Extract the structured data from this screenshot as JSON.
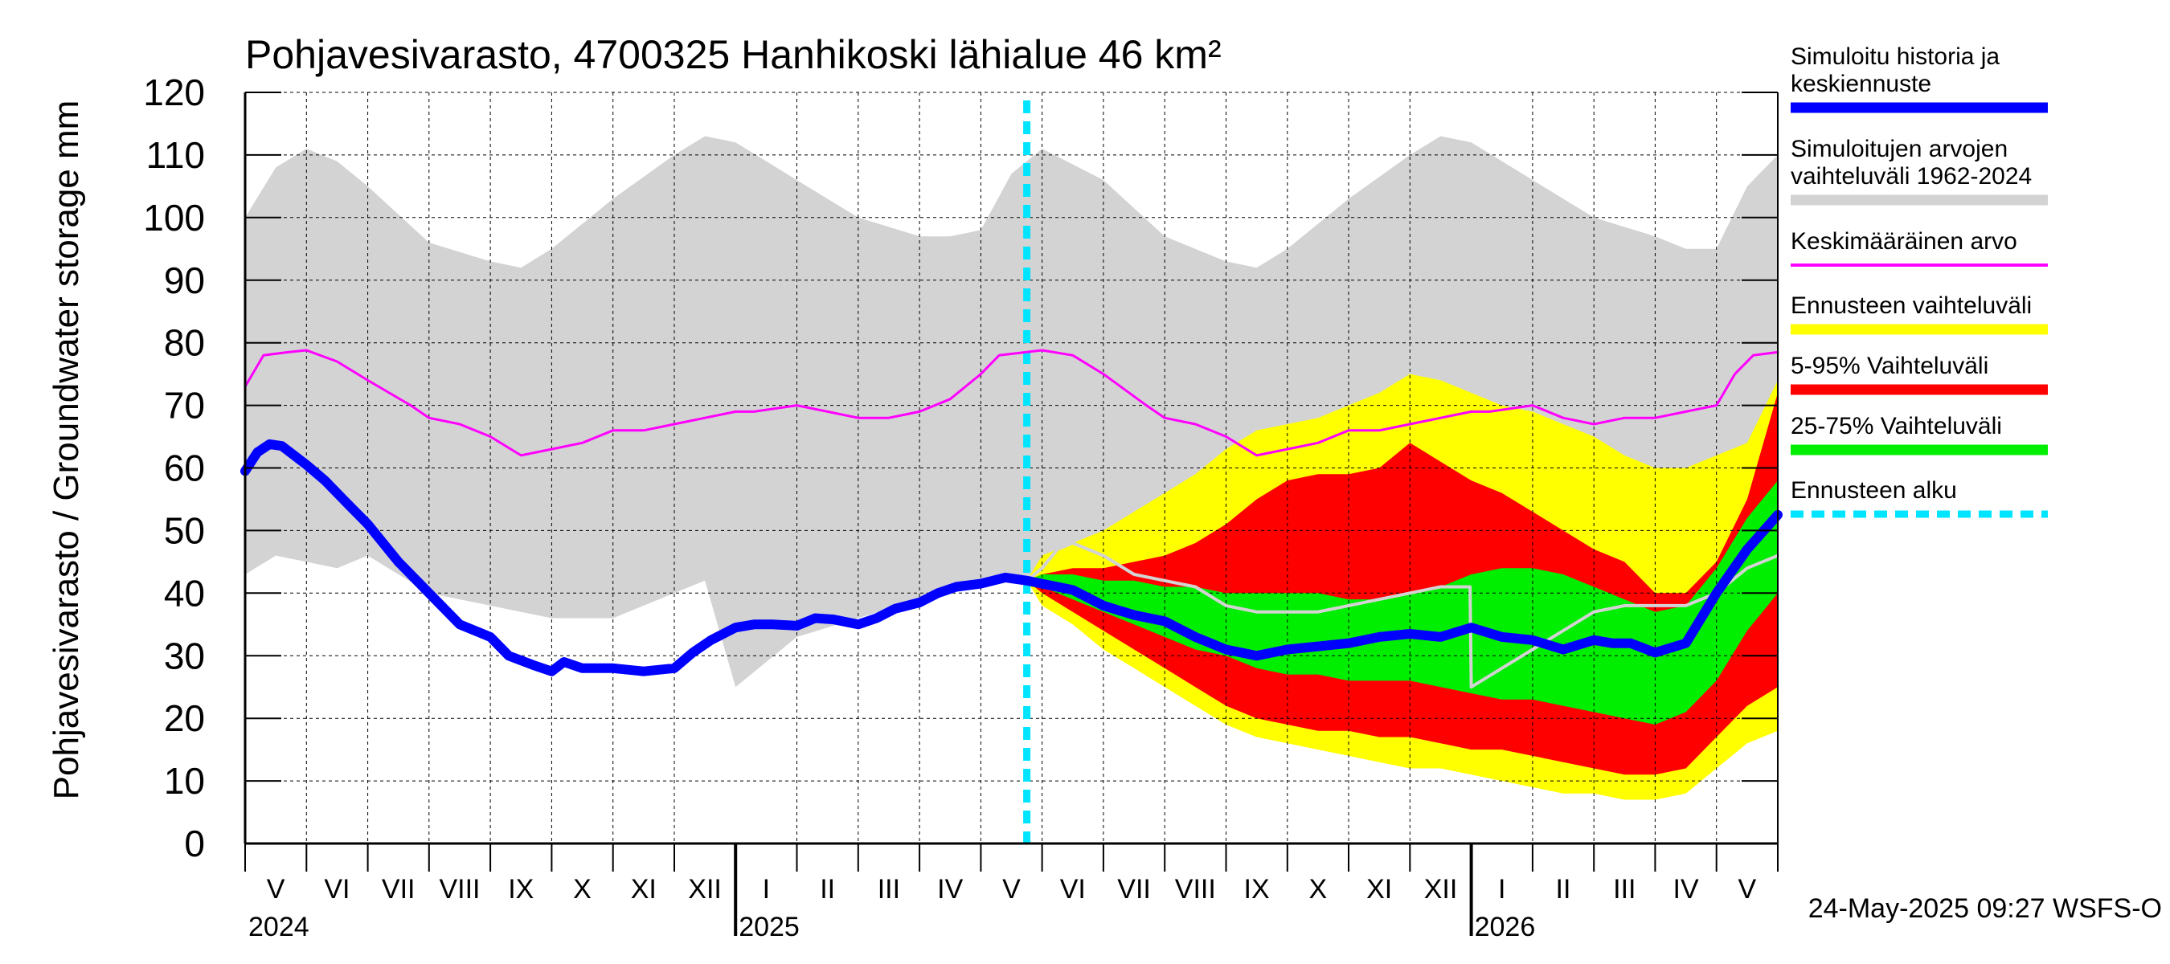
{
  "chart_data": {
    "type": "area",
    "title": "Pohjavesivarasto, 4700325 Hanhikoski lähialue 46 km²",
    "ylabel": "Pohjavesivarasto / Groundwater storage   mm",
    "ylim": [
      0,
      120
    ],
    "yticks": [
      0,
      10,
      20,
      30,
      40,
      50,
      60,
      70,
      80,
      90,
      100,
      110,
      120
    ],
    "grid": true,
    "x_range_months": [
      0,
      25
    ],
    "x_unit": "months since 2024-05-01",
    "months": [
      {
        "label": "V",
        "start": 0
      },
      {
        "label": "VI",
        "start": 1
      },
      {
        "label": "VII",
        "start": 2
      },
      {
        "label": "VIII",
        "start": 3
      },
      {
        "label": "IX",
        "start": 4
      },
      {
        "label": "X",
        "start": 5
      },
      {
        "label": "XI",
        "start": 6
      },
      {
        "label": "XII",
        "start": 7
      },
      {
        "label": "I",
        "start": 8
      },
      {
        "label": "II",
        "start": 9
      },
      {
        "label": "III",
        "start": 10
      },
      {
        "label": "IV",
        "start": 11
      },
      {
        "label": "V",
        "start": 12
      },
      {
        "label": "VI",
        "start": 13
      },
      {
        "label": "VII",
        "start": 14
      },
      {
        "label": "VIII",
        "start": 15
      },
      {
        "label": "IX",
        "start": 16
      },
      {
        "label": "X",
        "start": 17
      },
      {
        "label": "XI",
        "start": 18
      },
      {
        "label": "XII",
        "start": 19
      },
      {
        "label": "I",
        "start": 20
      },
      {
        "label": "II",
        "start": 21
      },
      {
        "label": "III",
        "start": 22
      },
      {
        "label": "IV",
        "start": 23
      },
      {
        "label": "V",
        "start": 24
      }
    ],
    "year_boundaries": [
      8,
      20
    ],
    "years": [
      {
        "label": "2024",
        "start": 0
      },
      {
        "label": "2025",
        "start": 8
      },
      {
        "label": "2026",
        "start": 20
      }
    ],
    "forecast_start": 12.75,
    "timestamp": "24-May-2025 09:27 WSFS-O",
    "legend": [
      {
        "label": "Simuloitu historia ja keskiennuste",
        "color": "#0000ff",
        "style": "thick"
      },
      {
        "label": "Simuloitujen arvojen vaihteluväli 1962-2024",
        "color": "#d3d3d3",
        "style": "thick"
      },
      {
        "label": "Keskimääräinen arvo",
        "color": "#ff00ff",
        "style": "thin"
      },
      {
        "label": "Ennusteen vaihteluväli",
        "color": "#ffff00",
        "style": "thick"
      },
      {
        "label": "5-95% Vaihteluväli",
        "color": "#ff0000",
        "style": "thick"
      },
      {
        "label": "25-75% Vaihteluväli",
        "color": "#00ee00",
        "style": "thick"
      },
      {
        "label": "Ennusteen alku",
        "color": "#00e5ff",
        "style": "dashed"
      }
    ],
    "series": [
      {
        "name": "Simuloitujen arvojen vaihteluväli 1962-2024",
        "kind": "band",
        "color": "#d3d3d3",
        "x": [
          0,
          0.5,
          1,
          1.5,
          2,
          3,
          4,
          4.5,
          5,
          6,
          7,
          7.5,
          8,
          9,
          10,
          11,
          11.5,
          12,
          12.5,
          13,
          14,
          15,
          16,
          16.5,
          17,
          18,
          19,
          19.5,
          20,
          21,
          22,
          23,
          23.5,
          24,
          24.5,
          25
        ],
        "upper": [
          100,
          108,
          111,
          109,
          105,
          96,
          93,
          92,
          95,
          103,
          110,
          113,
          112,
          106,
          100,
          97,
          97,
          98,
          107,
          111,
          106,
          97,
          93,
          92,
          95,
          103,
          110,
          113,
          112,
          106,
          100,
          97,
          95,
          95,
          105,
          110
        ],
        "lower": [
          43,
          46,
          45,
          44,
          46,
          40,
          38,
          37,
          36,
          36,
          40,
          42,
          25,
          33,
          36,
          39,
          40,
          41,
          42,
          42,
          40,
          38,
          37,
          36,
          36,
          36,
          40,
          42,
          25,
          33,
          36,
          39,
          40,
          41,
          42,
          42
        ]
      },
      {
        "name": "Keskimääräinen arvo",
        "kind": "line",
        "color": "#ff00ff",
        "x": [
          0,
          0.3,
          0.7,
          1,
          1.5,
          2,
          2.7,
          3,
          3.5,
          4,
          4.5,
          5,
          5.5,
          6,
          6.5,
          7,
          7.5,
          8,
          8.3,
          9,
          9.5,
          10,
          10.5,
          11,
          11.5,
          12,
          12.3,
          13,
          13.5,
          14,
          14.7,
          15,
          15.5,
          16,
          16.5,
          17,
          17.5,
          18,
          18.5,
          19,
          19.5,
          20,
          20.3,
          21,
          21.5,
          22,
          22.5,
          23,
          23.5,
          24,
          24.3,
          24.6,
          25
        ],
        "y": [
          73,
          78,
          78.5,
          78.8,
          77,
          74,
          70,
          68,
          67,
          65,
          62,
          63,
          64,
          66,
          66,
          67,
          68,
          69,
          69,
          70,
          69,
          68,
          68,
          69,
          71,
          75,
          78,
          78.8,
          78,
          75,
          70,
          68,
          67,
          65,
          62,
          63,
          64,
          66,
          66,
          67,
          68,
          69,
          69,
          70,
          68,
          67,
          68,
          68,
          69,
          70,
          75,
          78,
          78.5
        ]
      },
      {
        "name": "Ennusteen vaihteluväli",
        "kind": "band",
        "color": "#ffff00",
        "x": [
          12.75,
          13,
          13.5,
          14,
          14.5,
          15,
          15.5,
          16,
          16.5,
          17,
          17.5,
          18,
          18.5,
          19,
          19.5,
          20,
          20.5,
          21,
          21.5,
          22,
          22.5,
          23,
          23.5,
          24,
          24.5,
          25
        ],
        "upper": [
          42,
          46,
          48,
          50,
          53,
          56,
          59,
          63,
          66,
          67,
          68,
          70,
          72,
          75,
          74,
          72,
          70,
          69,
          67,
          65,
          62,
          60,
          60,
          62,
          64,
          74
        ],
        "lower": [
          42,
          38,
          35,
          31,
          28,
          25,
          22,
          19,
          17,
          16,
          15,
          14,
          13,
          12,
          12,
          11,
          10,
          9,
          8,
          8,
          7,
          7,
          8,
          12,
          16,
          18
        ]
      },
      {
        "name": "5-95% Vaihteluväli",
        "kind": "band",
        "color": "#ff0000",
        "x": [
          12.75,
          13,
          13.5,
          14,
          14.5,
          15,
          15.5,
          16,
          16.5,
          17,
          17.5,
          18,
          18.5,
          19,
          19.5,
          20,
          20.5,
          21,
          21.5,
          22,
          22.5,
          23,
          23.5,
          24,
          24.5,
          25
        ],
        "upper": [
          42,
          43,
          44,
          44,
          45,
          46,
          48,
          51,
          55,
          58,
          59,
          59,
          60,
          64,
          61,
          58,
          56,
          53,
          50,
          47,
          45,
          40,
          40,
          45,
          55,
          72
        ],
        "lower": [
          42,
          40,
          37,
          34,
          31,
          28,
          25,
          22,
          20,
          19,
          18,
          18,
          17,
          17,
          16,
          15,
          15,
          14,
          13,
          12,
          11,
          11,
          12,
          17,
          22,
          25
        ]
      },
      {
        "name": "25-75% Vaihteluväli",
        "kind": "band",
        "color": "#00ee00",
        "x": [
          12.75,
          13,
          13.5,
          14,
          14.5,
          15,
          15.5,
          16,
          16.5,
          17,
          17.5,
          18,
          18.5,
          19,
          19.5,
          20,
          20.5,
          21,
          21.5,
          22,
          22.5,
          23,
          23.5,
          24,
          24.5,
          25
        ],
        "upper": [
          42,
          43,
          43,
          42,
          42,
          41,
          41,
          40,
          40,
          40,
          40,
          39,
          39,
          40,
          41,
          43,
          44,
          44,
          43,
          41,
          39,
          37,
          38,
          44,
          52,
          58
        ],
        "lower": [
          42,
          41,
          39,
          37,
          35,
          33,
          31,
          30,
          28,
          27,
          27,
          26,
          26,
          26,
          25,
          24,
          23,
          23,
          22,
          21,
          20,
          19,
          21,
          26,
          34,
          40
        ]
      },
      {
        "name": "Mediaani",
        "kind": "line",
        "color": "#d3d3d3",
        "x": [
          12.75,
          13,
          13.25,
          13.5,
          14,
          14.5,
          15,
          15.5,
          16,
          16.5,
          17,
          17.5,
          18,
          18.5,
          19,
          19.5,
          19.98,
          20,
          20.5,
          21,
          21.5,
          22,
          22.5,
          23,
          23.5,
          24,
          24.5,
          25
        ],
        "y": [
          42,
          44,
          47,
          48,
          46,
          43,
          42,
          41,
          38,
          37,
          37,
          37,
          38,
          39,
          40,
          41,
          41,
          25,
          28,
          31,
          34,
          37,
          38,
          38,
          38,
          40,
          44,
          46
        ]
      },
      {
        "name": "Simuloitu historia ja keskiennuste",
        "kind": "line",
        "color": "#0000ff",
        "x": [
          0,
          0.2,
          0.4,
          0.6,
          0.8,
          1,
          1.3,
          1.6,
          2,
          2.5,
          3,
          3.5,
          4,
          4.3,
          4.7,
          5,
          5.2,
          5.5,
          5.8,
          6,
          6.5,
          7,
          7.3,
          7.6,
          8,
          8.3,
          8.6,
          9,
          9.3,
          9.6,
          10,
          10.3,
          10.6,
          11,
          11.3,
          11.6,
          12,
          12.4,
          12.75,
          13,
          13.5,
          14,
          14.5,
          15,
          15.5,
          16,
          16.5,
          17,
          17.5,
          18,
          18.5,
          19,
          19.5,
          20,
          20.5,
          21,
          21.5,
          22,
          22.3,
          22.6,
          23,
          23.5,
          24,
          24.5,
          25
        ],
        "y": [
          59.5,
          62.5,
          63.8,
          63.5,
          62,
          60.5,
          58,
          55,
          51,
          45,
          40,
          35,
          33,
          30,
          28.5,
          27.5,
          29,
          28,
          28,
          28,
          27.5,
          28,
          30.5,
          32.5,
          34.5,
          35,
          35,
          34.8,
          36,
          35.8,
          35,
          36,
          37.5,
          38.5,
          40,
          41,
          41.5,
          42.5,
          42,
          41.5,
          40.5,
          38,
          36.5,
          35.5,
          33,
          31,
          30,
          31,
          31.5,
          32,
          33,
          33.5,
          33,
          34.5,
          33,
          32.5,
          31,
          32.5,
          32,
          32,
          30.5,
          32,
          40,
          47,
          52.5
        ]
      }
    ]
  }
}
